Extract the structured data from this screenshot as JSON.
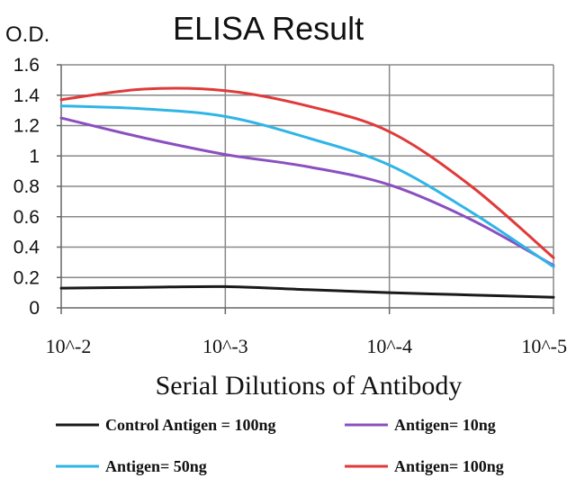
{
  "chart_data": {
    "type": "line",
    "title": "ELISA Result",
    "ylabel": "O.D.",
    "xlabel": "Serial Dilutions of Antibody",
    "categories": [
      "10^-2",
      "10^-3",
      "10^-4",
      "10^-5"
    ],
    "y_ticks": [
      "0",
      "0.2",
      "0.4",
      "0.6",
      "0.8",
      "1",
      "1.2",
      "1.4",
      "1.6"
    ],
    "ylim": [
      0,
      1.6
    ],
    "grid": true,
    "legend_position": "bottom",
    "series": [
      {
        "name": "Control Antigen = 100ng",
        "color": "#1a1a1a",
        "values": [
          0.13,
          0.14,
          0.1,
          0.07
        ],
        "mids": [
          0.135,
          0.12,
          0.085
        ]
      },
      {
        "name": "Antigen= 10ng",
        "color": "#8a4fc0",
        "values": [
          1.25,
          1.01,
          0.81,
          0.28
        ],
        "mids": [
          1.12,
          0.93,
          0.58
        ]
      },
      {
        "name": "Antigen= 50ng",
        "color": "#2fb5e6",
        "values": [
          1.33,
          1.26,
          0.94,
          0.27
        ],
        "mids": [
          1.31,
          1.12,
          0.63
        ]
      },
      {
        "name": "Antigen= 100ng",
        "color": "#e03a3a",
        "values": [
          1.37,
          1.43,
          1.16,
          0.33
        ],
        "mids": [
          1.44,
          1.33,
          0.8
        ]
      }
    ]
  }
}
